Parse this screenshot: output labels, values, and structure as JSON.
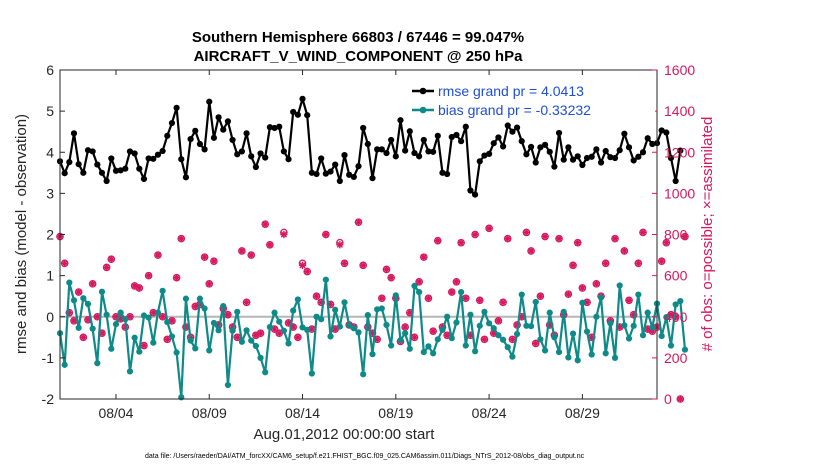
{
  "chart_data": {
    "type": "line",
    "title": "Southern Hemisphere 66803 / 67446 = 99.047%",
    "subtitle": "AIRCRAFT_V_WIND_COMPONENT @ 250 hPa",
    "xlabel": "Aug.01,2012 00:00:00 start",
    "ylabel_left": "rmse and bias (model - observation)",
    "ylabel_right": "# of obs: o=possible; ×=assimilated",
    "footnote": "data file: /Users/raeder/DAI/ATM_forcXX/CAM6_setup/f.e21.FHIST_BGC.f09_025.CAM6assim.011/Diags_NTrS_2012-08/obs_diag_output.nc",
    "xlim": [
      1,
      33
    ],
    "ylim_left": [
      -2,
      6
    ],
    "ylim_right": [
      0,
      1600
    ],
    "x_ticks": [
      4,
      9,
      14,
      19,
      24,
      29
    ],
    "x_tick_labels": [
      "08/04",
      "08/09",
      "08/14",
      "08/19",
      "08/24",
      "08/29"
    ],
    "y_left_ticks": [
      -2,
      -1,
      0,
      1,
      2,
      3,
      4,
      5,
      6
    ],
    "y_right_ticks": [
      0,
      200,
      400,
      600,
      800,
      1000,
      1200,
      1400,
      1600
    ],
    "zero_line": 0,
    "colors": {
      "rmse": "#000000",
      "bias": "#0e8a88",
      "obs": "#d6185e",
      "legend_text": "#1f4fd1",
      "zero": "#b5b5b5"
    },
    "x_start": 1.0,
    "x_step": 0.25,
    "series": [
      {
        "name": "rmse grand pr = 4.0413",
        "axis": "left",
        "values": [
          3.78,
          3.49,
          3.76,
          4.46,
          3.71,
          3.5,
          4.05,
          4.02,
          3.7,
          3.5,
          3.3,
          3.85,
          3.55,
          3.56,
          3.6,
          4.02,
          3.97,
          3.6,
          3.35,
          3.85,
          3.84,
          3.94,
          4.03,
          4.4,
          4.71,
          5.08,
          3.83,
          3.39,
          4.32,
          4.52,
          4.2,
          4.07,
          5.23,
          4.35,
          4.85,
          4.55,
          4.75,
          4.3,
          3.95,
          4.02,
          4.46,
          3.9,
          3.64,
          3.97,
          3.87,
          4.61,
          4.59,
          4.62,
          4.02,
          3.83,
          4.98,
          4.91,
          5.3,
          4.9,
          3.5,
          3.47,
          3.85,
          3.48,
          3.53,
          3.7,
          3.3,
          3.93,
          3.45,
          3.4,
          3.66,
          4.59,
          4.2,
          3.37,
          4.07,
          4.07,
          3.98,
          4.3,
          3.9,
          4.78,
          4.04,
          4.51,
          3.98,
          3.9,
          4.3,
          4.02,
          4.01,
          4.4,
          3.5,
          3.47,
          4.37,
          4.42,
          4.27,
          4.62,
          3.07,
          2.97,
          3.78,
          3.92,
          3.96,
          4.22,
          4.36,
          4.14,
          4.65,
          4.5,
          4.6,
          4.27,
          3.95,
          4.13,
          3.75,
          4.12,
          4.18,
          4.01,
          3.65,
          4.47,
          3.82,
          4.12,
          3.82,
          3.9,
          3.69,
          3.86,
          3.89,
          4.07,
          3.75,
          4.03,
          3.88,
          3.86,
          4.05,
          4.45,
          4.12,
          3.8,
          3.89,
          4.0,
          4.34,
          4.2,
          4.22,
          4.53,
          4.48,
          3.86,
          3.3,
          4.04
        ]
      },
      {
        "name": "bias grand pr = -0.33232",
        "axis": "left",
        "values": [
          -0.4,
          -1.17,
          0.83,
          0.4,
          -0.27,
          0.45,
          0.31,
          -0.29,
          -1.13,
          0.61,
          0.05,
          -0.78,
          -0.18,
          0.1,
          -0.06,
          -1.33,
          -0.51,
          -0.85,
          0.03,
          -0.02,
          -0.63,
          0.1,
          0.63,
          -0.13,
          -0.48,
          -0.87,
          -1.96,
          0.44,
          -0.58,
          -0.77,
          0.44,
          0.2,
          -0.82,
          -0.15,
          -0.33,
          0.26,
          -1.66,
          -0.34,
          0.12,
          -0.61,
          -0.33,
          -0.58,
          -0.71,
          -1.0,
          -1.35,
          -0.25,
          0.1,
          -0.12,
          -0.34,
          -0.65,
          0.15,
          0.42,
          -0.26,
          -0.32,
          -1.38,
          0.0,
          -0.06,
          0.9,
          -0.48,
          0.17,
          -0.24,
          0.35,
          -0.21,
          -0.28,
          -0.38,
          -1.4,
          0.04,
          -0.91,
          0.18,
          0.2,
          -0.2,
          -0.7,
          0.52,
          -0.57,
          -0.4,
          -0.78,
          0.75,
          0.6,
          -0.86,
          -0.72,
          -0.89,
          -0.55,
          -0.32,
          0.0,
          -0.52,
          -0.14,
          0.6,
          -0.7,
          0.05,
          -0.84,
          -0.22,
          0.12,
          -0.16,
          -0.28,
          -0.45,
          -0.56,
          -0.74,
          -0.97,
          -0.42,
          0.54,
          -0.22,
          -0.23,
          0.36,
          -0.55,
          -0.82,
          0.1,
          -0.5,
          -0.86,
          0.12,
          -0.99,
          -0.41,
          -1.06,
          0.34,
          -0.36,
          -0.92,
          0.0,
          0.47,
          -0.89,
          -0.16,
          -1.0,
          0.76,
          -0.21,
          -0.53,
          -0.22,
          0.54,
          -0.45,
          0.1,
          -0.26,
          0.32,
          -0.47,
          -0.01,
          -0.7,
          0.3,
          0.38,
          -0.8
        ]
      },
      {
        "name": "obs assimilated",
        "axis": "right",
        "values": [
          790,
          660,
          420,
          380,
          520,
          300,
          385,
          560,
          400,
          320,
          640,
          680,
          400,
          390,
          350,
          400,
          550,
          540,
          260,
          600,
          420,
          700,
          400,
          290,
          380,
          590,
          780,
          350,
          300,
          450,
          460,
          690,
          560,
          670,
          360,
          440,
          410,
          350,
          300,
          720,
          470,
          700,
          310,
          320,
          850,
          750,
          340,
          320,
          800,
          370,
          350,
          300,
          650,
          620,
          340,
          500,
          470,
          800,
          460,
          340,
          750,
          660,
          360,
          350,
          860,
          650,
          350,
          320,
          290,
          490,
          630,
          590,
          490,
          280,
          350,
          420,
          300,
          570,
          690,
          490,
          330,
          770,
          350,
          310,
          520,
          570,
          760,
          490,
          310,
          800,
          480,
          290,
          830,
          320,
          380,
          470,
          780,
          290,
          360,
          400,
          810,
          720,
          270,
          500,
          790,
          360,
          310,
          780,
          410,
          510,
          650,
          760,
          540,
          470,
          300,
          560,
          500,
          660,
          380,
          780,
          350,
          720,
          480,
          410,
          660,
          810,
          340,
          330,
          350,
          670,
          760,
          410,
          400,
          0,
          790
        ]
      },
      {
        "name": "obs possible",
        "axis": "right",
        "values": [
          790,
          660,
          420,
          380,
          520,
          300,
          385,
          560,
          400,
          320,
          640,
          680,
          400,
          390,
          350,
          400,
          550,
          540,
          260,
          600,
          420,
          700,
          400,
          290,
          380,
          590,
          780,
          350,
          300,
          450,
          460,
          690,
          560,
          670,
          360,
          440,
          410,
          350,
          300,
          720,
          470,
          700,
          310,
          320,
          850,
          750,
          340,
          320,
          810,
          370,
          350,
          300,
          660,
          620,
          340,
          500,
          470,
          800,
          460,
          340,
          760,
          660,
          360,
          350,
          860,
          650,
          350,
          320,
          290,
          490,
          630,
          590,
          490,
          280,
          350,
          420,
          300,
          570,
          690,
          490,
          330,
          770,
          350,
          310,
          520,
          570,
          760,
          490,
          310,
          800,
          480,
          290,
          830,
          320,
          380,
          470,
          780,
          290,
          360,
          400,
          810,
          720,
          270,
          500,
          790,
          360,
          310,
          780,
          410,
          510,
          650,
          760,
          540,
          470,
          300,
          560,
          500,
          660,
          380,
          780,
          350,
          720,
          480,
          410,
          660,
          810,
          340,
          330,
          350,
          670,
          760,
          410,
          400,
          0,
          790
        ]
      }
    ]
  }
}
